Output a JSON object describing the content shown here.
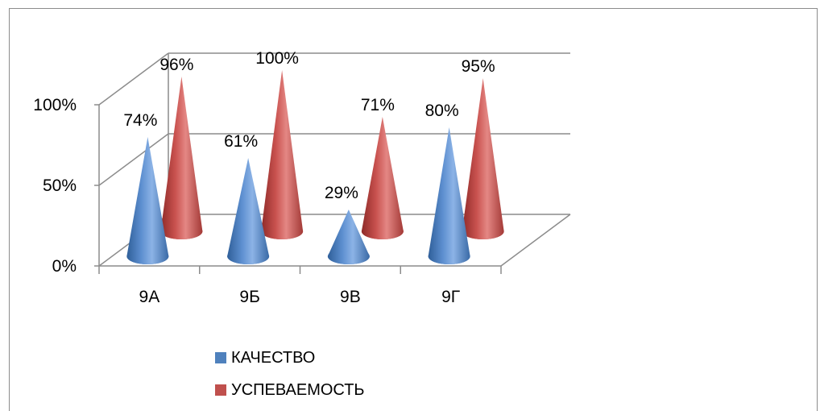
{
  "chart_data": {
    "type": "bar",
    "style": "3d-cone",
    "categories": [
      "9А",
      "9Б",
      "9В",
      "9Г"
    ],
    "series": [
      {
        "name": "КАЧЕСТВО",
        "values": [
          74,
          61,
          29,
          80
        ],
        "labels": [
          "74%",
          "61%",
          "29%",
          "80%"
        ],
        "color": "#4f81bd"
      },
      {
        "name": "УСПЕВАЕМОСТЬ",
        "values": [
          96,
          100,
          71,
          95
        ],
        "labels": [
          "96%",
          "100%",
          "71%",
          "95%"
        ],
        "color": "#c0504d"
      }
    ],
    "yticks": [
      "0%",
      "50%",
      "100%"
    ],
    "ylim": [
      0,
      100
    ],
    "grid": true,
    "legend": "bottom"
  }
}
